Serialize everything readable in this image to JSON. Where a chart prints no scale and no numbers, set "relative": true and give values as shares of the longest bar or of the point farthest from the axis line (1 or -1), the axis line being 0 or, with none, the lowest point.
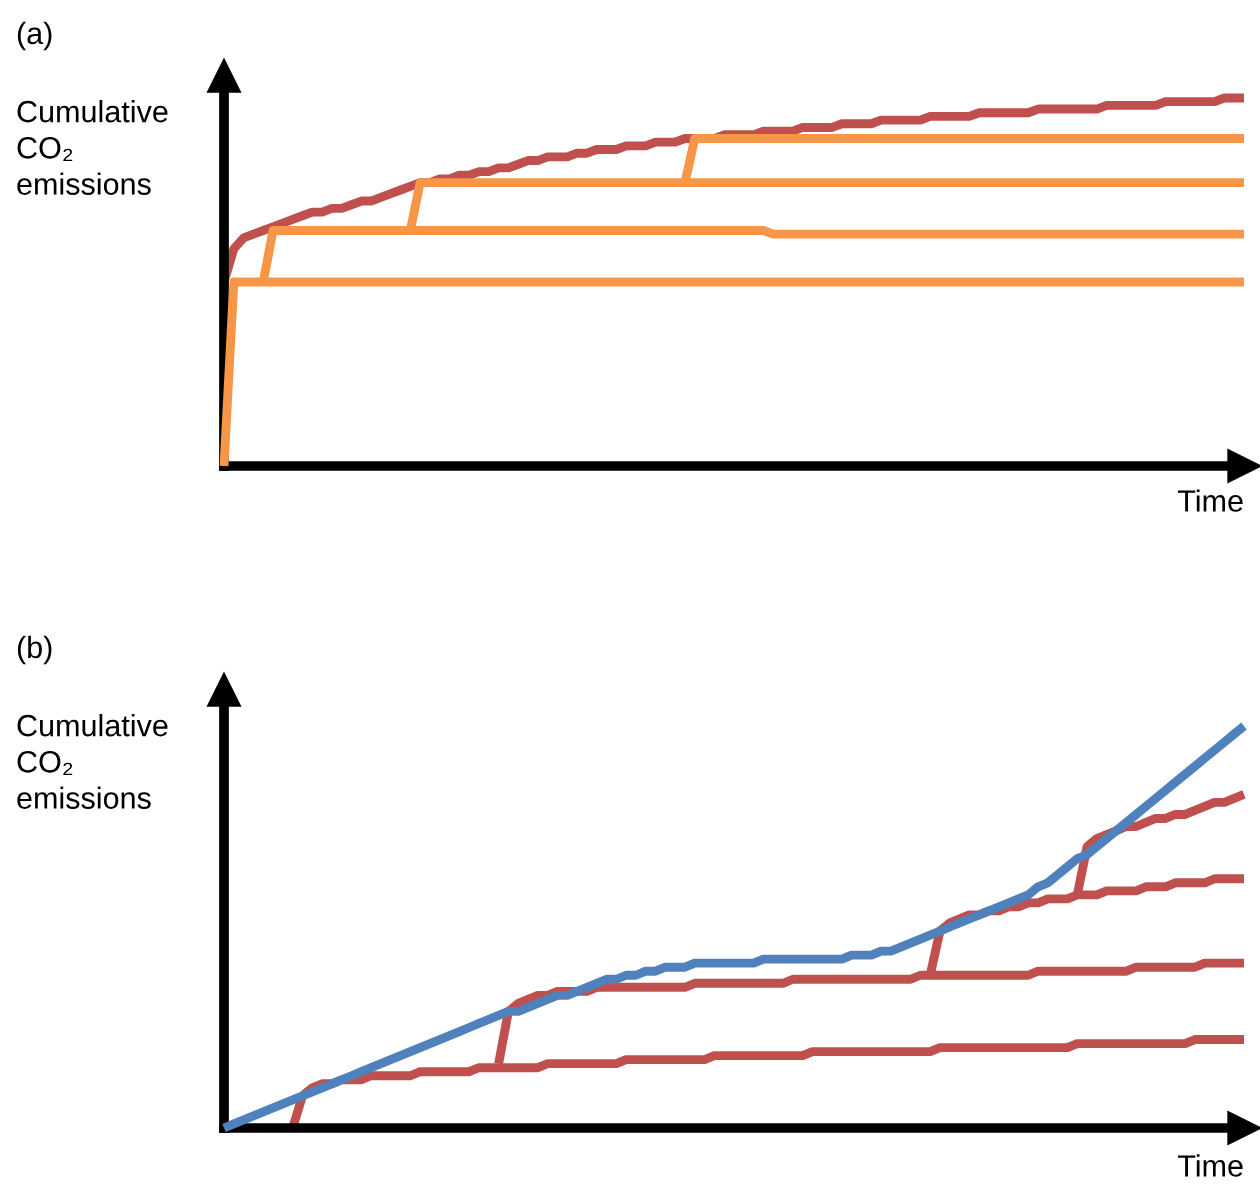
{
  "chart_data": [
    {
      "type": "line",
      "title": "(a)",
      "xlabel": "Time",
      "ylabel": "Cumulative CO₂ emissions",
      "relative": true,
      "marker": "none",
      "line_style": "solid",
      "categories": [
        null,
        null,
        null,
        null,
        null,
        null,
        null,
        null,
        null,
        null,
        null,
        null,
        null,
        null,
        null,
        null,
        null,
        null,
        null,
        null,
        null,
        null,
        null,
        null,
        null,
        null,
        null,
        null,
        null,
        null,
        null,
        null,
        null,
        null,
        null,
        null,
        null,
        null,
        null,
        null,
        null,
        null,
        null,
        null,
        null,
        null,
        null,
        null,
        null,
        null,
        null,
        null,
        null,
        null,
        null,
        null,
        null,
        null,
        null,
        null,
        null,
        null,
        null,
        null,
        null,
        null,
        null,
        null,
        null,
        null,
        null,
        null,
        null,
        null,
        null,
        null,
        null,
        null,
        null,
        null,
        null,
        null,
        null,
        null,
        null,
        null,
        null,
        null,
        null,
        null,
        null,
        null,
        null,
        null,
        null,
        null,
        null,
        null,
        null,
        null,
        null,
        null,
        null,
        null,
        null
      ],
      "series": [
        {
          "color": "#c0504d",
          "values": [
            0.5,
            0.59,
            0.62,
            0.63,
            0.64,
            0.65,
            0.66,
            0.67,
            0.68,
            0.69,
            0.69,
            0.7,
            0.7,
            0.71,
            0.72,
            0.72,
            0.73,
            0.74,
            0.75,
            0.76,
            0.77,
            0.77,
            0.78,
            0.78,
            0.79,
            0.79,
            0.8,
            0.8,
            0.81,
            0.81,
            0.82,
            0.83,
            0.83,
            0.84,
            0.84,
            0.84,
            0.85,
            0.85,
            0.86,
            0.86,
            0.86,
            0.87,
            0.87,
            0.87,
            0.88,
            0.88,
            0.88,
            0.89,
            0.89,
            0.89,
            0.89,
            0.9,
            0.9,
            0.9,
            0.9,
            0.91,
            0.91,
            0.91,
            0.91,
            0.92,
            0.92,
            0.92,
            0.92,
            0.93,
            0.93,
            0.93,
            0.93,
            0.94,
            0.94,
            0.94,
            0.94,
            0.94,
            0.95,
            0.95,
            0.95,
            0.95,
            0.95,
            0.96,
            0.96,
            0.96,
            0.96,
            0.96,
            0.96,
            0.97,
            0.97,
            0.97,
            0.97,
            0.97,
            0.97,
            0.97,
            0.98,
            0.98,
            0.98,
            0.98,
            0.98,
            0.98,
            0.99,
            0.99,
            0.99,
            0.99,
            0.99,
            0.99,
            1,
            1,
            1
          ]
        },
        {
          "color": "#f79646",
          "values": [
            0,
            0.5,
            0.5,
            0.5,
            0.5,
            0.5,
            0.5,
            0.5,
            0.5,
            0.5,
            0.5,
            0.5,
            0.5,
            0.5,
            0.5,
            0.5,
            0.5,
            0.5,
            0.5,
            0.5,
            0.5,
            0.5,
            0.5,
            0.5,
            0.5,
            0.5,
            0.5,
            0.5,
            0.5,
            0.5,
            0.5,
            0.5,
            0.5,
            0.5,
            0.5,
            0.5,
            0.5,
            0.5,
            0.5,
            0.5,
            0.5,
            0.5,
            0.5,
            0.5,
            0.5,
            0.5,
            0.5,
            0.5,
            0.5,
            0.5,
            0.5,
            0.5,
            0.5,
            0.5,
            0.5,
            0.5,
            0.5,
            0.5,
            0.5,
            0.5,
            0.5,
            0.5,
            0.5,
            0.5,
            0.5,
            0.5,
            0.5,
            0.5,
            0.5,
            0.5,
            0.5,
            0.5,
            0.5,
            0.5,
            0.5,
            0.5,
            0.5,
            0.5,
            0.5,
            0.5,
            0.5,
            0.5,
            0.5,
            0.5,
            0.5,
            0.5,
            0.5,
            0.5,
            0.5,
            0.5,
            0.5,
            0.5,
            0.5,
            0.5,
            0.5,
            0.5,
            0.5,
            0.5,
            0.5,
            0.5,
            0.5,
            0.5,
            0.5,
            0.5,
            0.5
          ]
        },
        {
          "color": "#f79646",
          "values": [
            null,
            null,
            null,
            null,
            0.5,
            0.64,
            0.64,
            0.64,
            0.64,
            0.64,
            0.64,
            0.64,
            0.64,
            0.64,
            0.64,
            0.64,
            0.64,
            0.64,
            0.64,
            0.64,
            0.64,
            0.64,
            0.64,
            0.64,
            0.64,
            0.64,
            0.64,
            0.64,
            0.64,
            0.64,
            0.64,
            0.64,
            0.64,
            0.64,
            0.64,
            0.64,
            0.64,
            0.64,
            0.64,
            0.64,
            0.64,
            0.64,
            0.64,
            0.64,
            0.64,
            0.64,
            0.64,
            0.64,
            0.64,
            0.64,
            0.64,
            0.64,
            0.64,
            0.64,
            0.64,
            0.64,
            0.63,
            0.63,
            0.63,
            0.63,
            0.63,
            0.63,
            0.63,
            0.63,
            0.63,
            0.63,
            0.63,
            0.63,
            0.63,
            0.63,
            0.63,
            0.63,
            0.63,
            0.63,
            0.63,
            0.63,
            0.63,
            0.63,
            0.63,
            0.63,
            0.63,
            0.63,
            0.63,
            0.63,
            0.63,
            0.63,
            0.63,
            0.63,
            0.63,
            0.63,
            0.63,
            0.63,
            0.63,
            0.63,
            0.63,
            0.63,
            0.63,
            0.63,
            0.63,
            0.63,
            0.63,
            0.63,
            0.63,
            0.63,
            0.63
          ]
        },
        {
          "color": "#f79646",
          "values": [
            null,
            null,
            null,
            null,
            null,
            null,
            null,
            null,
            null,
            null,
            null,
            null,
            null,
            null,
            null,
            null,
            null,
            null,
            null,
            0.64,
            0.77,
            0.77,
            0.77,
            0.77,
            0.77,
            0.77,
            0.77,
            0.77,
            0.77,
            0.77,
            0.77,
            0.77,
            0.77,
            0.77,
            0.77,
            0.77,
            0.77,
            0.77,
            0.77,
            0.77,
            0.77,
            0.77,
            0.77,
            0.77,
            0.77,
            0.77,
            0.77,
            0.77,
            0.77,
            0.77,
            0.77,
            0.77,
            0.77,
            0.77,
            0.77,
            0.77,
            0.77,
            0.77,
            0.77,
            0.77,
            0.77,
            0.77,
            0.77,
            0.77,
            0.77,
            0.77,
            0.77,
            0.77,
            0.77,
            0.77,
            0.77,
            0.77,
            0.77,
            0.77,
            0.77,
            0.77,
            0.77,
            0.77,
            0.77,
            0.77,
            0.77,
            0.77,
            0.77,
            0.77,
            0.77,
            0.77,
            0.77,
            0.77,
            0.77,
            0.77,
            0.77,
            0.77,
            0.77,
            0.77,
            0.77,
            0.77,
            0.77,
            0.77,
            0.77,
            0.77,
            0.77,
            0.77,
            0.77,
            0.77,
            0.77
          ]
        },
        {
          "color": "#f79646",
          "values": [
            null,
            null,
            null,
            null,
            null,
            null,
            null,
            null,
            null,
            null,
            null,
            null,
            null,
            null,
            null,
            null,
            null,
            null,
            null,
            null,
            null,
            null,
            null,
            null,
            null,
            null,
            null,
            null,
            null,
            null,
            null,
            null,
            null,
            null,
            null,
            null,
            null,
            null,
            null,
            null,
            null,
            null,
            null,
            null,
            null,
            null,
            null,
            0.77,
            0.89,
            0.89,
            0.89,
            0.89,
            0.89,
            0.89,
            0.89,
            0.89,
            0.89,
            0.89,
            0.89,
            0.89,
            0.89,
            0.89,
            0.89,
            0.89,
            0.89,
            0.89,
            0.89,
            0.89,
            0.89,
            0.89,
            0.89,
            0.89,
            0.89,
            0.89,
            0.89,
            0.89,
            0.89,
            0.89,
            0.89,
            0.89,
            0.89,
            0.89,
            0.89,
            0.89,
            0.89,
            0.89,
            0.89,
            0.89,
            0.89,
            0.89,
            0.89,
            0.89,
            0.89,
            0.89,
            0.89,
            0.89,
            0.89,
            0.89,
            0.89,
            0.89,
            0.89,
            0.89,
            0.89,
            0.89,
            0.89
          ]
        }
      ]
    },
    {
      "type": "line",
      "title": "(b)",
      "xlabel": "Time",
      "ylabel": "Cumulative CO₂ emissions",
      "relative": true,
      "marker": "none",
      "line_style": "solid",
      "categories": [
        null,
        null,
        null,
        null,
        null,
        null,
        null,
        null,
        null,
        null,
        null,
        null,
        null,
        null,
        null,
        null,
        null,
        null,
        null,
        null,
        null,
        null,
        null,
        null,
        null,
        null,
        null,
        null,
        null,
        null,
        null,
        null,
        null,
        null,
        null,
        null,
        null,
        null,
        null,
        null,
        null,
        null,
        null,
        null,
        null,
        null,
        null,
        null,
        null,
        null,
        null,
        null,
        null,
        null,
        null,
        null,
        null,
        null,
        null,
        null,
        null,
        null,
        null,
        null,
        null,
        null,
        null,
        null,
        null,
        null,
        null,
        null,
        null,
        null,
        null,
        null,
        null,
        null,
        null,
        null,
        null,
        null,
        null,
        null,
        null,
        null,
        null,
        null,
        null,
        null,
        null,
        null,
        null,
        null,
        null,
        null,
        null,
        null,
        null,
        null,
        null,
        null,
        null,
        null,
        null
      ],
      "series": [
        {
          "color": "#c0504d",
          "values": [
            null,
            null,
            null,
            null,
            null,
            null,
            null,
            0,
            0.08,
            0.1,
            0.11,
            0.11,
            0.12,
            0.12,
            0.12,
            0.13,
            0.13,
            0.13,
            0.13,
            0.13,
            0.14,
            0.14,
            0.14,
            0.14,
            0.14,
            0.14,
            0.15,
            0.15,
            0.15,
            0.15,
            0.15,
            0.15,
            0.15,
            0.16,
            0.16,
            0.16,
            0.16,
            0.16,
            0.16,
            0.16,
            0.16,
            0.17,
            0.17,
            0.17,
            0.17,
            0.17,
            0.17,
            0.17,
            0.17,
            0.17,
            0.18,
            0.18,
            0.18,
            0.18,
            0.18,
            0.18,
            0.18,
            0.18,
            0.18,
            0.18,
            0.19,
            0.19,
            0.19,
            0.19,
            0.19,
            0.19,
            0.19,
            0.19,
            0.19,
            0.19,
            0.19,
            0.19,
            0.19,
            0.2,
            0.2,
            0.2,
            0.2,
            0.2,
            0.2,
            0.2,
            0.2,
            0.2,
            0.2,
            0.2,
            0.2,
            0.2,
            0.2,
            0.21,
            0.21,
            0.21,
            0.21,
            0.21,
            0.21,
            0.21,
            0.21,
            0.21,
            0.21,
            0.21,
            0.21,
            0.22,
            0.22,
            0.22,
            0.22,
            0.22,
            0.22
          ]
        },
        {
          "color": "#c0504d",
          "values": [
            null,
            null,
            null,
            null,
            null,
            null,
            null,
            null,
            null,
            null,
            null,
            null,
            null,
            null,
            null,
            null,
            null,
            null,
            null,
            null,
            null,
            null,
            null,
            null,
            null,
            null,
            null,
            null,
            0.16,
            0.29,
            0.31,
            0.32,
            0.33,
            0.33,
            0.34,
            0.34,
            0.34,
            0.34,
            0.35,
            0.35,
            0.35,
            0.35,
            0.35,
            0.35,
            0.35,
            0.35,
            0.35,
            0.35,
            0.36,
            0.36,
            0.36,
            0.36,
            0.36,
            0.36,
            0.36,
            0.36,
            0.36,
            0.36,
            0.37,
            0.37,
            0.37,
            0.37,
            0.37,
            0.37,
            0.37,
            0.37,
            0.37,
            0.37,
            0.37,
            0.37,
            0.37,
            0.38,
            0.38,
            0.38,
            0.38,
            0.38,
            0.38,
            0.38,
            0.38,
            0.38,
            0.38,
            0.38,
            0.38,
            0.39,
            0.39,
            0.39,
            0.39,
            0.39,
            0.39,
            0.39,
            0.39,
            0.39,
            0.39,
            0.4,
            0.4,
            0.4,
            0.4,
            0.4,
            0.4,
            0.4,
            0.41,
            0.41,
            0.41,
            0.41,
            0.41
          ]
        },
        {
          "color": "#c0504d",
          "values": [
            null,
            null,
            null,
            null,
            null,
            null,
            null,
            null,
            null,
            null,
            null,
            null,
            null,
            null,
            null,
            null,
            null,
            null,
            null,
            null,
            null,
            null,
            null,
            null,
            null,
            null,
            null,
            null,
            null,
            null,
            null,
            null,
            null,
            null,
            null,
            null,
            null,
            null,
            null,
            null,
            null,
            null,
            null,
            null,
            null,
            null,
            null,
            null,
            null,
            null,
            null,
            null,
            null,
            null,
            null,
            null,
            null,
            null,
            null,
            null,
            null,
            null,
            null,
            null,
            null,
            null,
            null,
            null,
            null,
            null,
            null,
            null,
            0.38,
            0.49,
            0.51,
            0.52,
            0.53,
            0.53,
            0.54,
            0.54,
            0.55,
            0.55,
            0.56,
            0.56,
            0.57,
            0.57,
            0.57,
            0.58,
            0.58,
            0.58,
            0.59,
            0.59,
            0.59,
            0.59,
            0.6,
            0.6,
            0.6,
            0.61,
            0.61,
            0.61,
            0.61,
            0.62,
            0.62,
            0.62,
            0.62
          ]
        },
        {
          "color": "#c0504d",
          "values": [
            null,
            null,
            null,
            null,
            null,
            null,
            null,
            null,
            null,
            null,
            null,
            null,
            null,
            null,
            null,
            null,
            null,
            null,
            null,
            null,
            null,
            null,
            null,
            null,
            null,
            null,
            null,
            null,
            null,
            null,
            null,
            null,
            null,
            null,
            null,
            null,
            null,
            null,
            null,
            null,
            null,
            null,
            null,
            null,
            null,
            null,
            null,
            null,
            null,
            null,
            null,
            null,
            null,
            null,
            null,
            null,
            null,
            null,
            null,
            null,
            null,
            null,
            null,
            null,
            null,
            null,
            null,
            null,
            null,
            null,
            null,
            null,
            null,
            null,
            null,
            null,
            null,
            null,
            null,
            null,
            null,
            null,
            null,
            null,
            null,
            null,
            null,
            0.58,
            0.7,
            0.72,
            0.73,
            0.74,
            0.75,
            0.75,
            0.76,
            0.77,
            0.77,
            0.78,
            0.78,
            0.79,
            0.8,
            0.81,
            0.81,
            0.82,
            0.83
          ]
        },
        {
          "color": "#4f81bd",
          "values": [
            0,
            0.01,
            0.02,
            0.03,
            0.04,
            0.05,
            0.06,
            0.07,
            0.08,
            0.09,
            0.1,
            0.11,
            0.12,
            0.13,
            0.14,
            0.15,
            0.16,
            0.17,
            0.18,
            0.19,
            0.2,
            0.21,
            0.22,
            0.23,
            0.24,
            0.25,
            0.26,
            0.27,
            0.28,
            0.29,
            0.29,
            0.3,
            0.31,
            0.32,
            0.33,
            0.33,
            0.34,
            0.35,
            0.36,
            0.37,
            0.37,
            0.38,
            0.38,
            0.39,
            0.39,
            0.4,
            0.4,
            0.4,
            0.41,
            0.41,
            0.41,
            0.41,
            0.41,
            0.41,
            0.41,
            0.42,
            0.42,
            0.42,
            0.42,
            0.42,
            0.42,
            0.42,
            0.42,
            0.42,
            0.43,
            0.43,
            0.43,
            0.44,
            0.44,
            0.45,
            0.46,
            0.47,
            0.48,
            0.49,
            0.5,
            0.51,
            0.52,
            0.53,
            0.54,
            0.55,
            0.56,
            0.57,
            0.58,
            0.6,
            0.61,
            0.63,
            0.65,
            0.67,
            0.68,
            0.7,
            0.72,
            0.74,
            0.76,
            0.78,
            0.8,
            0.82,
            0.84,
            0.86,
            0.88,
            0.9,
            0.92,
            0.94,
            0.96,
            0.98,
            1
          ]
        }
      ]
    }
  ]
}
